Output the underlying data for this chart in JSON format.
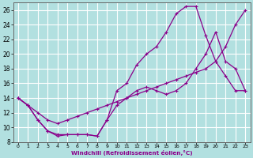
{
  "background_color": "#b2e0e0",
  "grid_color": "#ffffff",
  "line_color": "#8B008B",
  "xlabel": "Windchill (Refroidissement éolien,°C)",
  "xlim": [
    -0.5,
    23.5
  ],
  "ylim": [
    8,
    27
  ],
  "xticks": [
    0,
    1,
    2,
    3,
    4,
    5,
    6,
    7,
    8,
    9,
    10,
    11,
    12,
    13,
    14,
    15,
    16,
    17,
    18,
    19,
    20,
    21,
    22,
    23
  ],
  "yticks": [
    8,
    10,
    12,
    14,
    16,
    18,
    20,
    22,
    24,
    26
  ],
  "line1_x": [
    0,
    1,
    2,
    3,
    4,
    5,
    6,
    7,
    8,
    9,
    10,
    11,
    12,
    13,
    14,
    15,
    16,
    17,
    18,
    19,
    20,
    21,
    22,
    23
  ],
  "line1_y": [
    14,
    13,
    11,
    9.5,
    8.8,
    9,
    9,
    9,
    8.8,
    11,
    15,
    16,
    18.5,
    20,
    21,
    23,
    25.5,
    26.5,
    26.5,
    22.5,
    19,
    17,
    15,
    15
  ],
  "line2_x": [
    0,
    1,
    2,
    3,
    4,
    5,
    6,
    7,
    8,
    9,
    10,
    11,
    12,
    13,
    14,
    15,
    16,
    17,
    18,
    19,
    20,
    21,
    22,
    23
  ],
  "line2_y": [
    14,
    13,
    12,
    11,
    10.5,
    11,
    11.5,
    12,
    12.5,
    13,
    13.5,
    14,
    14.5,
    15,
    15.5,
    16,
    16.5,
    17,
    17.5,
    18,
    19,
    21,
    24,
    26
  ],
  "line3_x": [
    0,
    1,
    2,
    3,
    4,
    5,
    6,
    7,
    8,
    9,
    10,
    11,
    12,
    13,
    14,
    15,
    16,
    17,
    18,
    19,
    20,
    21,
    22,
    23
  ],
  "line3_y": [
    14,
    13,
    11,
    9.5,
    9,
    9,
    9,
    9,
    8.8,
    11,
    13,
    14,
    15,
    15.5,
    15,
    14.5,
    15,
    16,
    18,
    20,
    23,
    19,
    18,
    15
  ]
}
